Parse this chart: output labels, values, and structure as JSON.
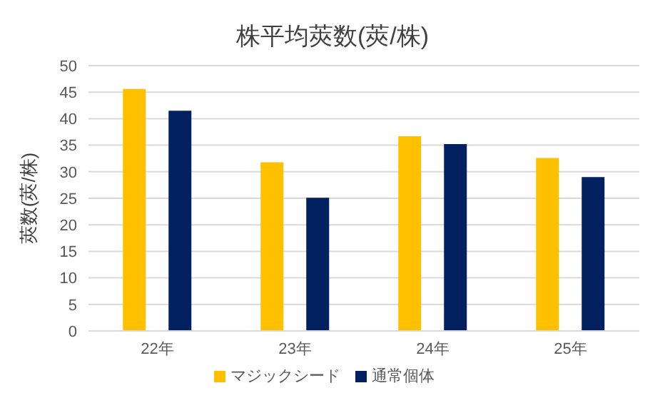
{
  "chart_data": {
    "type": "bar",
    "title": "株平均莢数(莢/株)",
    "ylabel": "莢数(莢/株)",
    "categories": [
      "22年",
      "23年",
      "24年",
      "25年"
    ],
    "series": [
      {
        "name": "マジックシード",
        "color": "#ffc000",
        "values": [
          45.6,
          31.8,
          36.7,
          32.6
        ]
      },
      {
        "name": "通常個体",
        "color": "#002060",
        "values": [
          41.5,
          25.1,
          35.2,
          29.0
        ]
      }
    ],
    "ylim": [
      0,
      50
    ],
    "yticks": [
      0,
      5,
      10,
      15,
      20,
      25,
      30,
      35,
      40,
      45,
      50
    ],
    "grid": "y",
    "legend": "bottom"
  }
}
